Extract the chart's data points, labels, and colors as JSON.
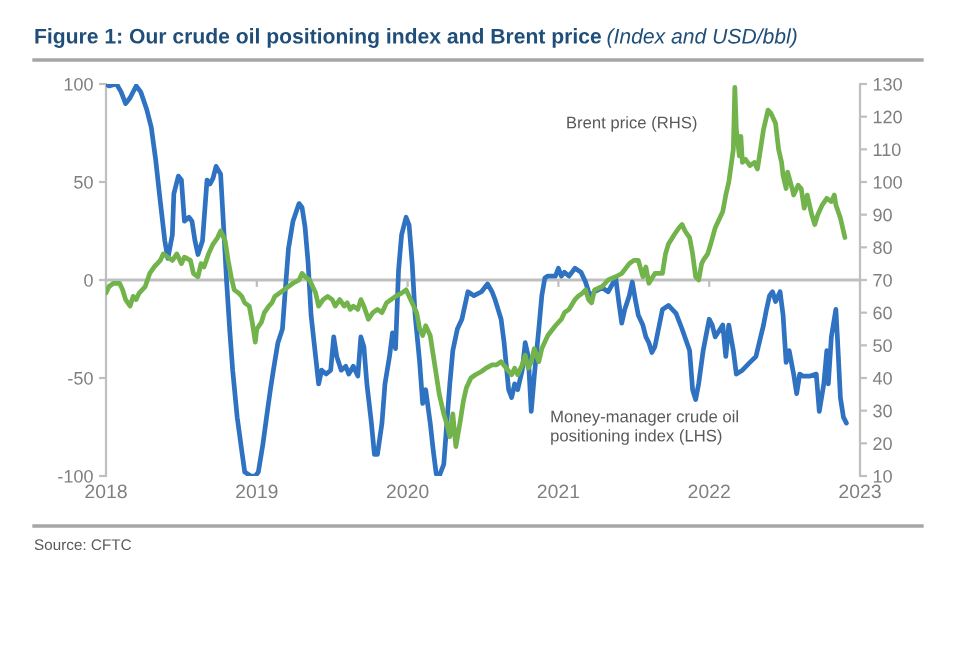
{
  "chart_data": {
    "type": "line",
    "title": "Figure 1: Our crude oil positioning index and Brent price",
    "subtitle": "(Index and USD/bbl)",
    "annotations": [
      "Source: CFTC"
    ],
    "xlim": [
      2018,
      2023
    ],
    "xticks": [
      2018,
      2019,
      2020,
      2021,
      2022,
      2023
    ],
    "ylim": [
      -100,
      100
    ],
    "yticks": [
      -100,
      -50,
      0,
      50,
      100
    ],
    "y2lim": [
      10,
      130
    ],
    "y2ticks": [
      10,
      20,
      30,
      40,
      50,
      60,
      70,
      80,
      90,
      100,
      110,
      120,
      130
    ],
    "series": [
      {
        "name": "Money-manager crude oil\npositioning index (LHS)",
        "color": "#2f72c2",
        "x": [
          2018.0,
          2018.02,
          2018.07,
          2018.1,
          2018.13,
          2018.16,
          2018.2,
          2018.23,
          2018.27,
          2018.3,
          2018.33,
          2018.36,
          2018.39,
          2018.41,
          2018.44,
          2018.45,
          2018.48,
          2018.5,
          2018.52,
          2018.55,
          2018.57,
          2018.59,
          2018.61,
          2018.64,
          2018.67,
          2018.69,
          2018.71,
          2018.73,
          2018.76,
          2018.78,
          2018.8,
          2018.82,
          2018.84,
          2018.87,
          2018.9,
          2018.92,
          2018.96,
          2018.99,
          2019.01,
          2019.04,
          2019.07,
          2019.09,
          2019.11,
          2019.14,
          2019.17,
          2019.19,
          2019.21,
          2019.24,
          2019.28,
          2019.3,
          2019.32,
          2019.34,
          2019.36,
          2019.39,
          2019.41,
          2019.43,
          2019.46,
          2019.49,
          2019.51,
          2019.53,
          2019.56,
          2019.59,
          2019.61,
          2019.64,
          2019.67,
          2019.69,
          2019.71,
          2019.73,
          2019.76,
          2019.78,
          2019.8,
          2019.83,
          2019.85,
          2019.88,
          2019.9,
          2019.92,
          2019.94,
          2019.96,
          2019.99,
          2020.01,
          2020.03,
          2020.05,
          2020.08,
          2020.1,
          2020.12,
          2020.15,
          2020.17,
          2020.19,
          2020.21,
          2020.24,
          2020.26,
          2020.28,
          2020.3,
          2020.33,
          2020.36,
          2020.4,
          2020.44,
          2020.49,
          2020.53,
          2020.56,
          2020.58,
          2020.6,
          2020.62,
          2020.64,
          2020.67,
          2020.69,
          2020.71,
          2020.73,
          2020.76,
          2020.78,
          2020.8,
          2020.82,
          2020.84,
          2020.87,
          2020.89,
          2020.91,
          2020.93,
          2020.98,
          2021.0,
          2021.02,
          2021.04,
          2021.07,
          2021.11,
          2021.15,
          2021.18,
          2021.2,
          2021.22,
          2021.24,
          2021.29,
          2021.33,
          2021.38,
          2021.4,
          2021.42,
          2021.44,
          2021.47,
          2021.49,
          2021.51,
          2021.53,
          2021.56,
          2021.58,
          2021.6,
          2021.62,
          2021.64,
          2021.69,
          2021.73,
          2021.78,
          2021.82,
          2021.87,
          2021.89,
          2021.91,
          2021.93,
          2021.96,
          2022.0,
          2022.02,
          2022.04,
          2022.09,
          2022.11,
          2022.13,
          2022.16,
          2022.18,
          2022.22,
          2022.27,
          2022.31,
          2022.36,
          2022.38,
          2022.4,
          2022.42,
          2022.44,
          2022.47,
          2022.49,
          2022.51,
          2022.53,
          2022.56,
          2022.58,
          2022.6,
          2022.62,
          2022.67,
          2022.71,
          2022.73,
          2022.76,
          2022.78,
          2022.79,
          2022.81,
          2022.84,
          2022.85,
          2022.87,
          2022.89,
          2022.91
        ],
        "values": [
          100,
          99,
          100,
          96,
          90,
          93,
          99,
          96,
          87,
          78,
          61,
          40,
          20,
          11,
          23,
          44,
          53,
          51,
          30,
          32,
          30,
          20,
          13,
          20,
          51,
          49,
          52,
          58,
          54,
          27,
          -1,
          -25,
          -46,
          -70,
          -87,
          -98,
          -100,
          -100,
          -98,
          -84,
          -67,
          -56,
          -46,
          -32,
          -25,
          -4,
          16,
          30,
          39,
          37,
          27,
          9,
          -18,
          -39,
          -53,
          -46,
          -48,
          -46,
          -29,
          -39,
          -46,
          -44,
          -48,
          -44,
          -49,
          -29,
          -34,
          -53,
          -73,
          -89,
          -89,
          -73,
          -53,
          -39,
          -27,
          -35,
          5,
          23,
          32,
          28,
          9,
          -18,
          -42,
          -63,
          -56,
          -73,
          -87,
          -99,
          -100,
          -94,
          -73,
          -53,
          -36,
          -25,
          -20,
          -6,
          -8,
          -6,
          -2,
          -6,
          -10,
          -15,
          -20,
          -32,
          -56,
          -60,
          -53,
          -56,
          -46,
          -32,
          -39,
          -67,
          -49,
          -25,
          -8,
          1,
          2,
          2,
          6,
          2,
          4,
          2,
          6,
          4,
          -1,
          -6,
          -8,
          -6,
          -4,
          -6,
          1,
          -11,
          -22,
          -15,
          -8,
          -1,
          -10,
          -18,
          -23,
          -29,
          -32,
          -37,
          -34,
          -15,
          -13,
          -17,
          -25,
          -36,
          -56,
          -61,
          -53,
          -36,
          -20,
          -23,
          -29,
          -23,
          -39,
          -23,
          -36,
          -48,
          -46,
          -42,
          -39,
          -23,
          -15,
          -8,
          -6,
          -11,
          -6,
          -18,
          -42,
          -36,
          -48,
          -58,
          -48,
          -49,
          -49,
          -48,
          -67,
          -53,
          -36,
          -53,
          -29,
          -15,
          -29,
          -60,
          -70,
          -73
        ]
      },
      {
        "name": "Brent price (RHS)",
        "color": "#72b34c",
        "axis": "y2",
        "x": [
          2018.0,
          2018.02,
          2018.05,
          2018.09,
          2018.11,
          2018.13,
          2018.16,
          2018.18,
          2018.2,
          2018.22,
          2018.26,
          2018.29,
          2018.32,
          2018.36,
          2018.38,
          2018.41,
          2018.44,
          2018.47,
          2018.5,
          2018.52,
          2018.56,
          2018.58,
          2018.61,
          2018.63,
          2018.65,
          2018.68,
          2018.71,
          2018.74,
          2018.76,
          2018.79,
          2018.81,
          2018.83,
          2018.85,
          2018.88,
          2018.9,
          2018.92,
          2018.95,
          2018.97,
          2018.99,
          2019.0,
          2019.03,
          2019.05,
          2019.08,
          2019.1,
          2019.12,
          2019.15,
          2019.18,
          2019.21,
          2019.24,
          2019.28,
          2019.3,
          2019.32,
          2019.35,
          2019.37,
          2019.39,
          2019.41,
          2019.44,
          2019.47,
          2019.5,
          2019.52,
          2019.55,
          2019.58,
          2019.6,
          2019.62,
          2019.64,
          2019.67,
          2019.69,
          2019.71,
          2019.74,
          2019.77,
          2019.8,
          2019.83,
          2019.86,
          2019.89,
          2019.92,
          2019.96,
          2019.99,
          2020.01,
          2020.04,
          2020.06,
          2020.08,
          2020.1,
          2020.12,
          2020.15,
          2020.17,
          2020.19,
          2020.21,
          2020.24,
          2020.26,
          2020.28,
          2020.3,
          2020.32,
          2020.35,
          2020.37,
          2020.39,
          2020.42,
          2020.45,
          2020.49,
          2020.52,
          2020.56,
          2020.59,
          2020.62,
          2020.69,
          2020.71,
          2020.73,
          2020.76,
          2020.78,
          2020.8,
          2020.82,
          2020.84,
          2020.87,
          2020.89,
          2020.91,
          2020.93,
          2020.98,
          2021.02,
          2021.04,
          2021.07,
          2021.11,
          2021.13,
          2021.16,
          2021.18,
          2021.2,
          2021.22,
          2021.24,
          2021.29,
          2021.31,
          2021.33,
          2021.38,
          2021.42,
          2021.47,
          2021.5,
          2021.53,
          2021.56,
          2021.58,
          2021.6,
          2021.64,
          2021.69,
          2021.71,
          2021.73,
          2021.77,
          2021.8,
          2021.82,
          2021.84,
          2021.87,
          2021.89,
          2021.91,
          2021.93,
          2021.95,
          2021.96,
          2021.99,
          2022.01,
          2022.04,
          2022.06,
          2022.09,
          2022.11,
          2022.13,
          2022.16,
          2022.17,
          2022.18,
          2022.2,
          2022.21,
          2022.22,
          2022.24,
          2022.27,
          2022.3,
          2022.32,
          2022.34,
          2022.36,
          2022.39,
          2022.41,
          2022.44,
          2022.46,
          2022.48,
          2022.49,
          2022.51,
          2022.52,
          2022.55,
          2022.56,
          2022.59,
          2022.61,
          2022.63,
          2022.65,
          2022.68,
          2022.7,
          2022.72,
          2022.75,
          2022.78,
          2022.81,
          2022.83,
          2022.84,
          2022.87,
          2022.89,
          2022.9
        ],
        "values": [
          66,
          68,
          69,
          69,
          67,
          64,
          62,
          65,
          64,
          66,
          68,
          72,
          74,
          76,
          78,
          77,
          76,
          78,
          75,
          77,
          76,
          72,
          71,
          75,
          74,
          78,
          81,
          83,
          85,
          82,
          76,
          71,
          67,
          66,
          65,
          63,
          62,
          57,
          51,
          55,
          57,
          60,
          62,
          63,
          65,
          66,
          67,
          68,
          69,
          70,
          72,
          71,
          70,
          68,
          66,
          62,
          64,
          65,
          64,
          62,
          64,
          62,
          63,
          61,
          62,
          61,
          64,
          62,
          58,
          60,
          61,
          60,
          63,
          64,
          65,
          66,
          67,
          65,
          62,
          60,
          55,
          53,
          56,
          53,
          47,
          41,
          35,
          29,
          26,
          22,
          29,
          19,
          27,
          33,
          37,
          40,
          41,
          42,
          43,
          44,
          44,
          45,
          41,
          43,
          41,
          44,
          47,
          43,
          45,
          49,
          45,
          49,
          51,
          53,
          56,
          58,
          60,
          61,
          64,
          65,
          66,
          67,
          64,
          63,
          67,
          68,
          69,
          70,
          71,
          72,
          75,
          76,
          76,
          71,
          74,
          69,
          72,
          72,
          78,
          81,
          84,
          86,
          87,
          85,
          83,
          78,
          71,
          70,
          75,
          76,
          78,
          81,
          86,
          88,
          91,
          96,
          100,
          110,
          129,
          116,
          108,
          114,
          106,
          107,
          105,
          106,
          104,
          110,
          116,
          122,
          121,
          118,
          110,
          106,
          102,
          98,
          103,
          98,
          96,
          99,
          98,
          92,
          96,
          90,
          87,
          90,
          93,
          95,
          94,
          96,
          93,
          89,
          85,
          83
        ]
      }
    ]
  }
}
